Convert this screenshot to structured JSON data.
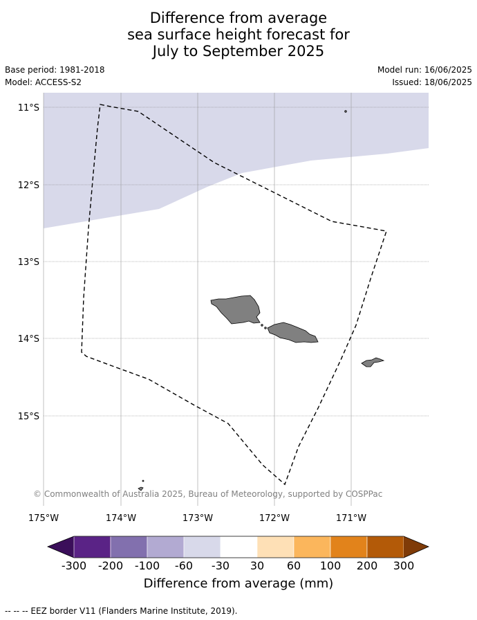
{
  "title": {
    "line1": "Difference from average",
    "line2": "sea surface height forecast for",
    "line3": "July to September 2025"
  },
  "meta": {
    "base_period": "Base period: 1981-2018",
    "model": "Model: ACCESS-S2",
    "model_run": "Model run: 16/06/2025",
    "issued": "Issued: 18/06/2025"
  },
  "map": {
    "lat_labels": [
      "11°S",
      "12°S",
      "13°S",
      "14°S",
      "15°S"
    ],
    "lon_labels": [
      "175°W",
      "174°W",
      "173°W",
      "172°W",
      "171°W"
    ],
    "copyright": "© Commonwealth of Australia 2025, Bureau of Meteorology, supported by COSPPac",
    "colors": {
      "land": "#808080",
      "shaded_anomaly": "#d8d9ea",
      "gridline": "#999999"
    },
    "shaded_anomaly_band": "-60 to -30"
  },
  "colorbar": {
    "ticks": [
      "-300",
      "-200",
      "-100",
      "-60",
      "-30",
      "30",
      "60",
      "100",
      "200",
      "300"
    ],
    "colors": [
      "#3b0f5a",
      "#5a2386",
      "#8270ae",
      "#b2aad2",
      "#d8d9ea",
      "#ffffff",
      "#fee0b6",
      "#fbb65c",
      "#e2831b",
      "#b35a08",
      "#7f3b08"
    ],
    "label": "Difference from average (mm)"
  },
  "footer": {
    "legend": "--  --  -- EEZ border V11 (Flanders Marine Institute, 2019)."
  }
}
